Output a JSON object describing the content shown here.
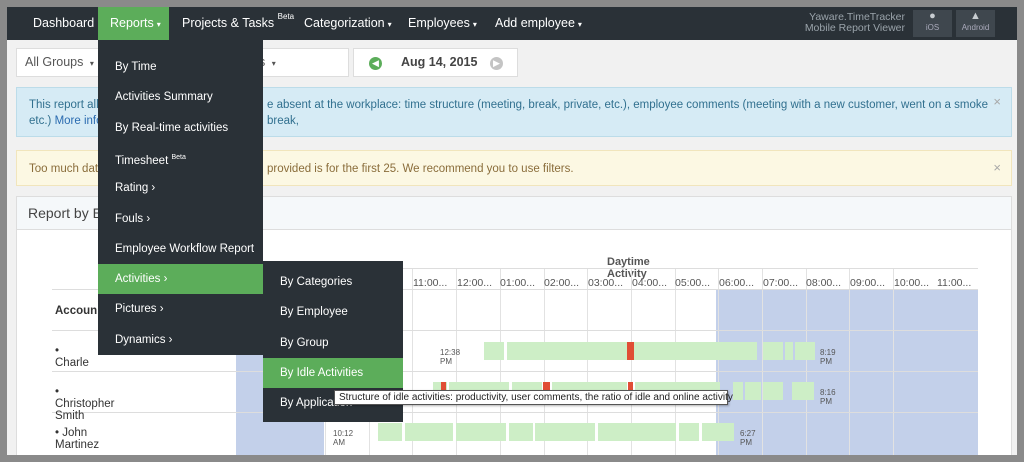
{
  "nav": {
    "dashboard": "Dashboard",
    "reports": "Reports",
    "projects": "Projects & Tasks",
    "projects_badge": "Beta",
    "categorization": "Categorization",
    "employees": "Employees",
    "add_employee": "Add employee",
    "brand_line1": "Yaware.TimeTracker",
    "brand_line2": "Mobile Report Viewer",
    "ios": "iOS",
    "android": "Android"
  },
  "toolbar": {
    "groups": "All Groups",
    "second_suffix": "s",
    "date": "Aug 14, 2015"
  },
  "alerts": {
    "info_start": "This report all",
    "info_rest": "e absent at the workplace: time structure (meeting, break, private, etc.), employee comments (meeting with a new customer, went on a smoke break,",
    "info_line2": "etc.)",
    "info_link": "More info",
    "warn_start": "Too much data",
    "warn_rest": "provided is for the first 25. We recommend you to use filters."
  },
  "panel": {
    "title": "Report by E",
    "daytime": "Daytime Activity",
    "account_header": "Accoun"
  },
  "hours": [
    "11:00...",
    "12:00...",
    "01:00...",
    "02:00...",
    "03:00...",
    "04:00...",
    "05:00...",
    "06:00...",
    "07:00...",
    "08:00...",
    "09:00...",
    "10:00...",
    "11:00..."
  ],
  "employees": [
    {
      "name": "• Charle",
      "start": "12:38 PM",
      "end": "8:19 PM"
    },
    {
      "name": "• Christopher Smith",
      "start": "",
      "end": "8:16 PM"
    },
    {
      "name": "• John Martinez",
      "start": "10:12 AM",
      "end": "6:27 PM"
    }
  ],
  "reports_menu": [
    {
      "label": "By Time",
      "badge": ""
    },
    {
      "label": "Activities Summary",
      "badge": ""
    },
    {
      "label": "By Real-time activities",
      "badge": ""
    },
    {
      "label": "Timesheet",
      "badge": "Beta"
    },
    {
      "label": "Rating ›",
      "badge": ""
    },
    {
      "label": "Fouls ›",
      "badge": ""
    },
    {
      "label": "Employee Workflow Report",
      "badge": ""
    },
    {
      "label": "Activities ›",
      "badge": ""
    },
    {
      "label": "Pictures ›",
      "badge": ""
    },
    {
      "label": "Dynamics ›",
      "badge": ""
    }
  ],
  "activities_menu": [
    "By Categories",
    "By Employee",
    "By Group",
    "By Idle Activities",
    "By Application"
  ],
  "tooltip": "Structure of idle activities: productivity, user comments, the ratio of idle and online activity",
  "colors": {
    "nav_bg": "#2a3137",
    "accent": "#5cad5a",
    "activity": "#cdeec6",
    "idle_mark": "#e04e35",
    "night": "#c3d0ea"
  }
}
